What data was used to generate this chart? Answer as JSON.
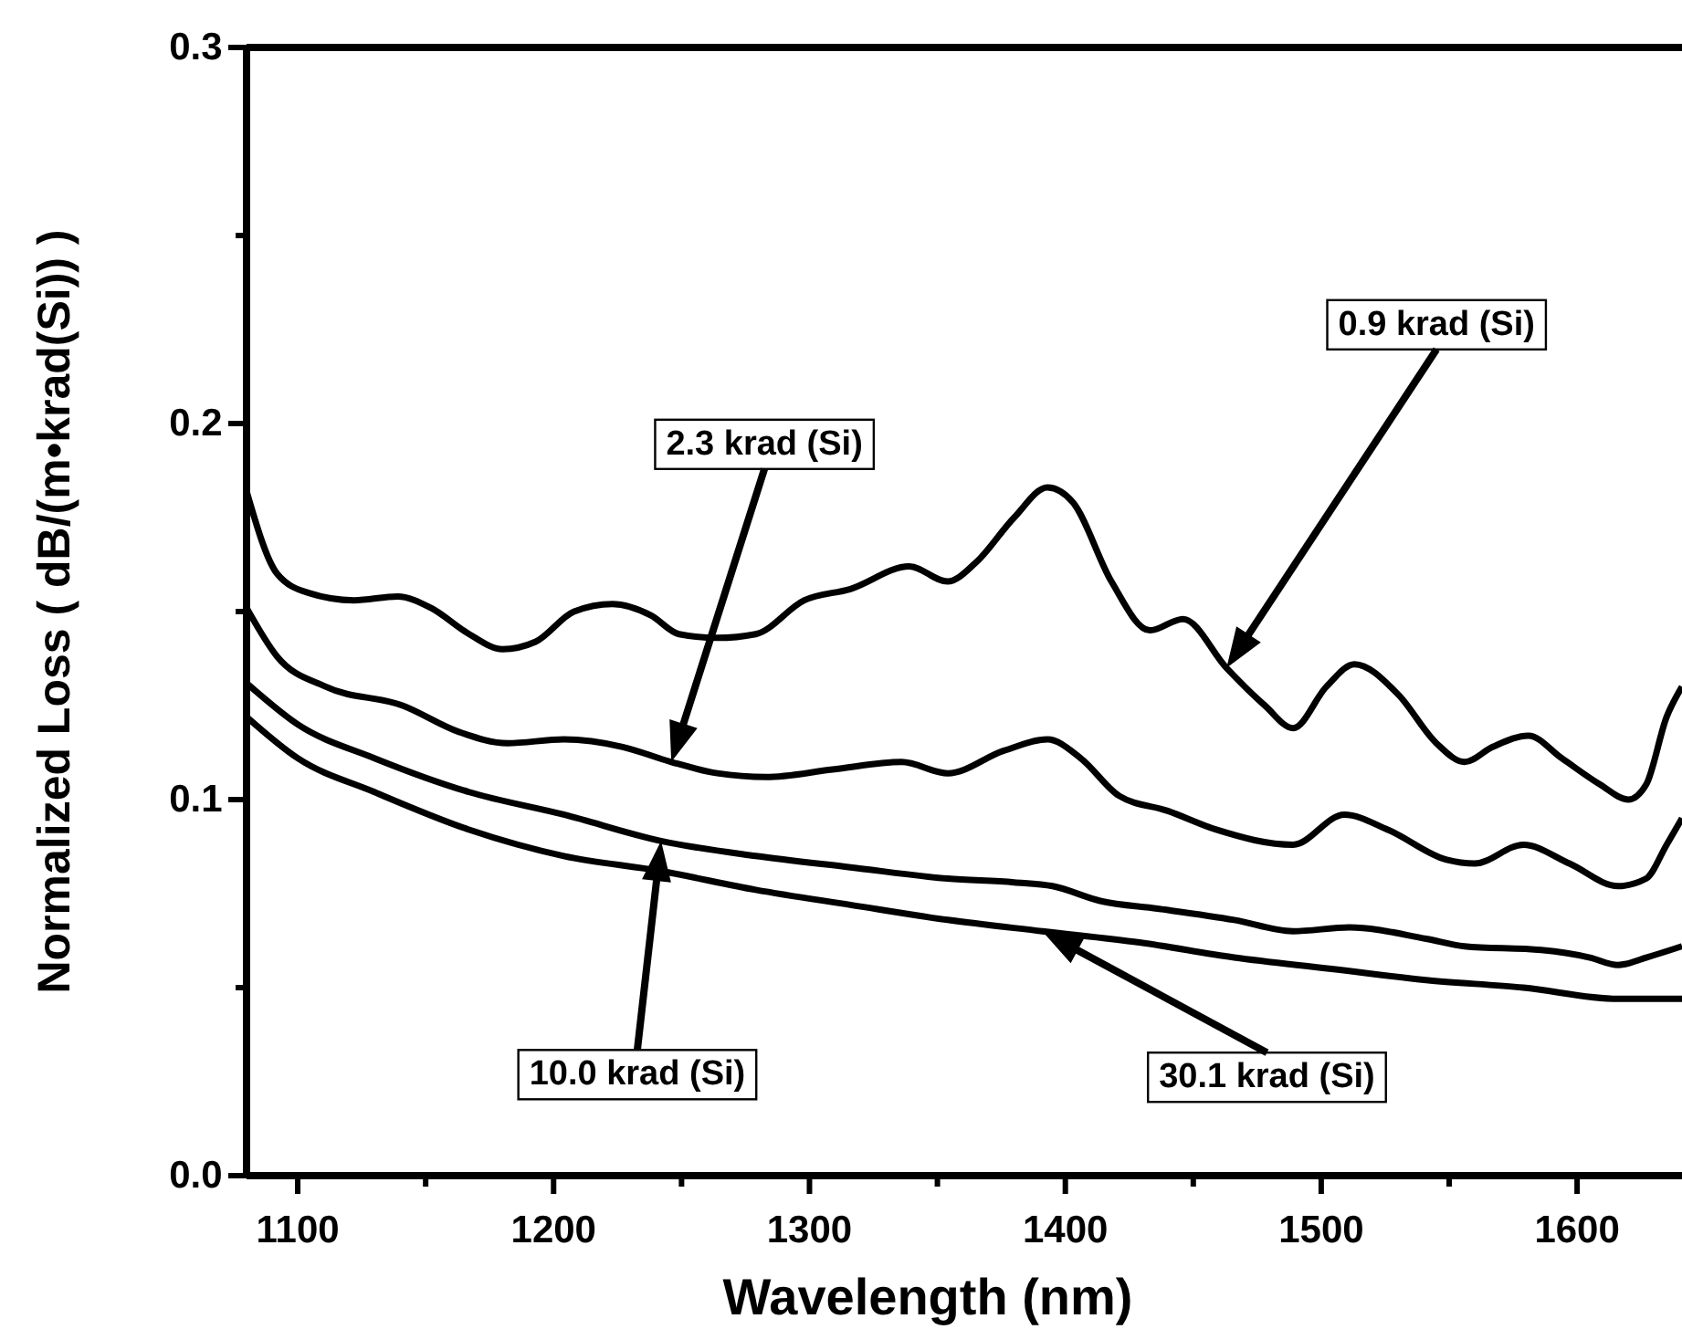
{
  "chart_data": {
    "type": "line",
    "xlabel": "Wavelength (nm)",
    "ylabel": "Normalized Loss ( dB/(m•krad(Si)) )",
    "xlim": [
      1080,
      1641
    ],
    "ylim": [
      0,
      0.3
    ],
    "xticks": [
      1100,
      {
        "value": 1150,
        "label": null
      },
      1200,
      {
        "value": 1250,
        "label": null
      },
      1300,
      {
        "value": 1350,
        "label": null
      },
      1400,
      {
        "value": 1450,
        "label": null
      },
      1500,
      {
        "value": 1550,
        "label": null
      },
      1600
    ],
    "yticks": [
      {
        "value": 0,
        "label": "0.0"
      },
      {
        "value": 0.05,
        "label": null
      },
      0.1,
      {
        "value": 0.15,
        "label": null
      },
      0.2,
      {
        "value": 0.25,
        "label": null
      },
      0.3
    ],
    "line_style": "solid",
    "marker": "none",
    "series": [
      {
        "name": "0.9 krad (Si)",
        "color": "#000000",
        "x": [
          1080,
          1092,
          1104,
          1122,
          1139,
          1152,
          1167,
          1180,
          1193,
          1208,
          1223,
          1238,
          1249,
          1264,
          1279,
          1298,
          1316,
          1339,
          1354,
          1365,
          1380,
          1393,
          1403,
          1418,
          1433,
          1446,
          1463,
          1478,
          1489,
          1502,
          1513,
          1530,
          1545,
          1556,
          1567,
          1581,
          1594,
          1609,
          1620,
          1627,
          1635,
          1641
        ],
        "values": [
          0.182,
          0.16,
          0.155,
          0.153,
          0.154,
          0.151,
          0.144,
          0.14,
          0.142,
          0.15,
          0.152,
          0.149,
          0.144,
          0.143,
          0.144,
          0.153,
          0.156,
          0.162,
          0.158,
          0.163,
          0.175,
          0.183,
          0.179,
          0.158,
          0.145,
          0.148,
          0.135,
          0.125,
          0.119,
          0.13,
          0.136,
          0.128,
          0.115,
          0.11,
          0.114,
          0.117,
          0.111,
          0.104,
          0.1,
          0.104,
          0.122,
          0.13
        ]
      },
      {
        "name": "2.3 krad (Si)",
        "color": "#000000",
        "x": [
          1080,
          1092,
          1111,
          1141,
          1163,
          1182,
          1204,
          1227,
          1246,
          1264,
          1283,
          1309,
          1336,
          1354,
          1376,
          1393,
          1406,
          1421,
          1440,
          1459,
          1489,
          1509,
          1526,
          1549,
          1560,
          1579,
          1597,
          1616,
          1627,
          1635,
          1641
        ],
        "values": [
          0.151,
          0.138,
          0.13,
          0.125,
          0.118,
          0.115,
          0.116,
          0.114,
          0.11,
          0.107,
          0.106,
          0.108,
          0.11,
          0.107,
          0.113,
          0.116,
          0.111,
          0.101,
          0.097,
          0.092,
          0.088,
          0.096,
          0.092,
          0.084,
          0.083,
          0.088,
          0.083,
          0.077,
          0.079,
          0.088,
          0.095
        ]
      },
      {
        "name": "10.0 krad (Si)",
        "color": "#000000",
        "x": [
          1080,
          1100,
          1130,
          1167,
          1204,
          1242,
          1279,
          1316,
          1354,
          1380,
          1395,
          1414,
          1436,
          1466,
          1489,
          1511,
          1541,
          1556,
          1586,
          1605,
          1616,
          1627,
          1641
        ],
        "values": [
          0.131,
          0.12,
          0.111,
          0.102,
          0.096,
          0.089,
          0.085,
          0.082,
          0.079,
          0.078,
          0.077,
          0.073,
          0.071,
          0.068,
          0.065,
          0.066,
          0.063,
          0.061,
          0.06,
          0.058,
          0.056,
          0.058,
          0.061
        ]
      },
      {
        "name": "30.1 krad (Si)",
        "color": "#000000",
        "x": [
          1080,
          1100,
          1130,
          1167,
          1204,
          1242,
          1279,
          1316,
          1354,
          1391,
          1429,
          1466,
          1504,
          1541,
          1579,
          1616,
          1641
        ],
        "values": [
          0.122,
          0.111,
          0.102,
          0.092,
          0.085,
          0.081,
          0.076,
          0.072,
          0.068,
          0.065,
          0.062,
          0.058,
          0.055,
          0.052,
          0.05,
          0.047,
          0.047
        ]
      }
    ]
  }
}
